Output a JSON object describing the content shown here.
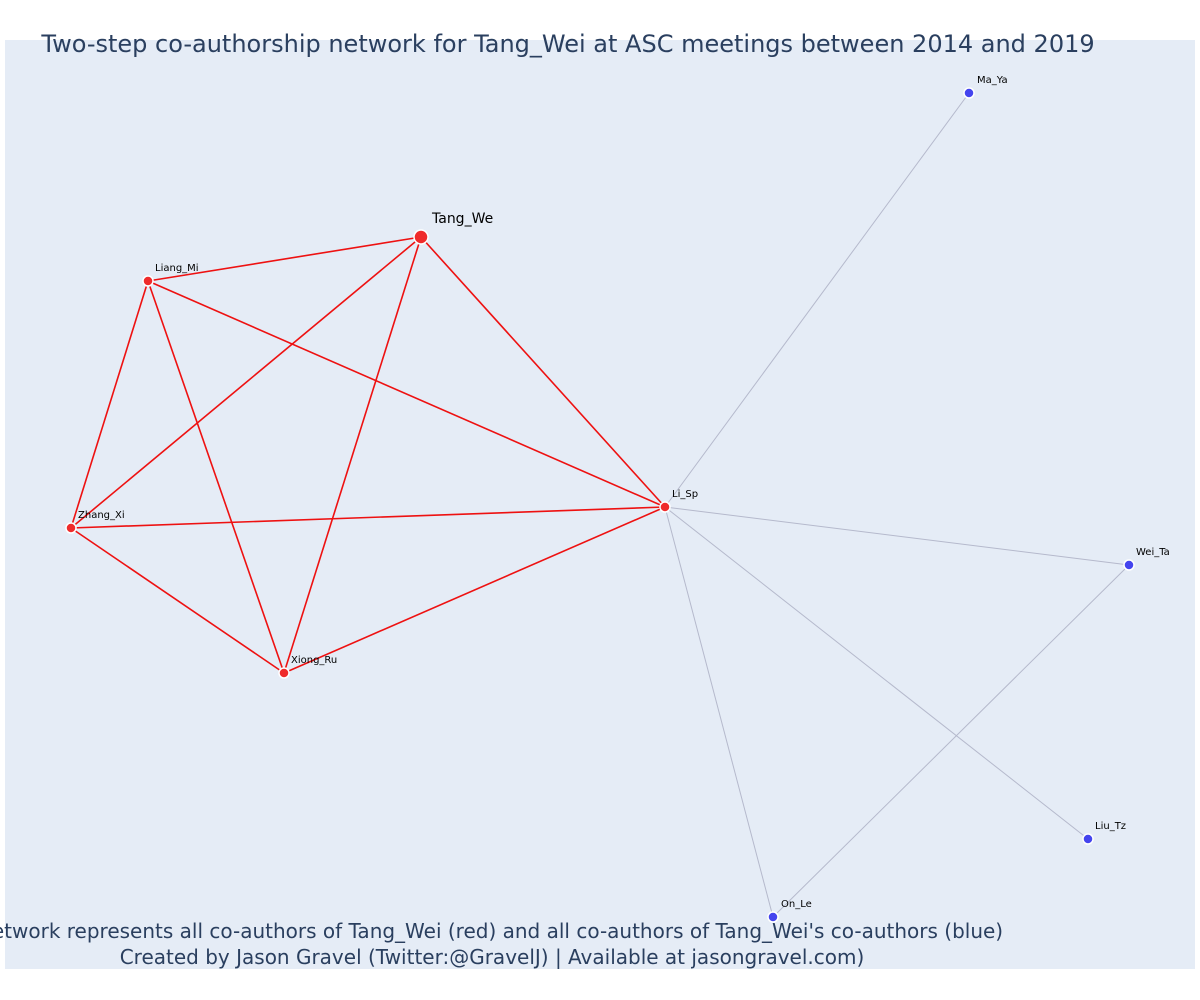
{
  "title": "Two-step co-authorship network for Tang_Wei at ASC meetings between 2014 and 2019",
  "caption": {
    "line1": "Network represents all co-authors of Tang_Wei (red) and all co-authors of Tang_Wei's co-authors (blue)",
    "line2": "Created by Jason Gravel (Twitter:@GravelJ) | Available at jasongravel.com)"
  },
  "colors": {
    "background": "#e5ecf6",
    "first_step": "#ef2b2b",
    "second_step": "#4444ee",
    "first_step_edge": "#ee1111",
    "second_step_edge": "#b5b9cc",
    "text": "#2a3f5f"
  },
  "chart_data": {
    "type": "network",
    "nodes": [
      {
        "id": "Tang_We",
        "label": "Tang_We",
        "group": "focal"
      },
      {
        "id": "Liang_Mi",
        "label": "Liang_Mi",
        "group": "coauthor"
      },
      {
        "id": "Zhang_Xi",
        "label": "Zhang_Xi",
        "group": "coauthor"
      },
      {
        "id": "Xiong_Ru",
        "label": "Xiong_Ru",
        "group": "coauthor"
      },
      {
        "id": "Li_Sp",
        "label": "Li_Sp",
        "group": "coauthor"
      },
      {
        "id": "Ma_Ya",
        "label": "Ma_Ya",
        "group": "second_step"
      },
      {
        "id": "Wei_Ta",
        "label": "Wei_Ta",
        "group": "second_step"
      },
      {
        "id": "Liu_Tz",
        "label": "Liu_Tz",
        "group": "second_step"
      },
      {
        "id": "On_Le",
        "label": "On_Le",
        "group": "second_step"
      }
    ],
    "edges": [
      {
        "source": "Tang_We",
        "target": "Liang_Mi",
        "kind": "first"
      },
      {
        "source": "Tang_We",
        "target": "Zhang_Xi",
        "kind": "first"
      },
      {
        "source": "Tang_We",
        "target": "Xiong_Ru",
        "kind": "first"
      },
      {
        "source": "Tang_We",
        "target": "Li_Sp",
        "kind": "first"
      },
      {
        "source": "Liang_Mi",
        "target": "Zhang_Xi",
        "kind": "first"
      },
      {
        "source": "Liang_Mi",
        "target": "Xiong_Ru",
        "kind": "first"
      },
      {
        "source": "Liang_Mi",
        "target": "Li_Sp",
        "kind": "first"
      },
      {
        "source": "Zhang_Xi",
        "target": "Xiong_Ru",
        "kind": "first"
      },
      {
        "source": "Zhang_Xi",
        "target": "Li_Sp",
        "kind": "first"
      },
      {
        "source": "Xiong_Ru",
        "target": "Li_Sp",
        "kind": "first"
      },
      {
        "source": "Li_Sp",
        "target": "Ma_Ya",
        "kind": "second"
      },
      {
        "source": "Li_Sp",
        "target": "Wei_Ta",
        "kind": "second"
      },
      {
        "source": "Li_Sp",
        "target": "Liu_Tz",
        "kind": "second"
      },
      {
        "source": "Li_Sp",
        "target": "On_Le",
        "kind": "second"
      },
      {
        "source": "Wei_Ta",
        "target": "On_Le",
        "kind": "second"
      }
    ]
  }
}
